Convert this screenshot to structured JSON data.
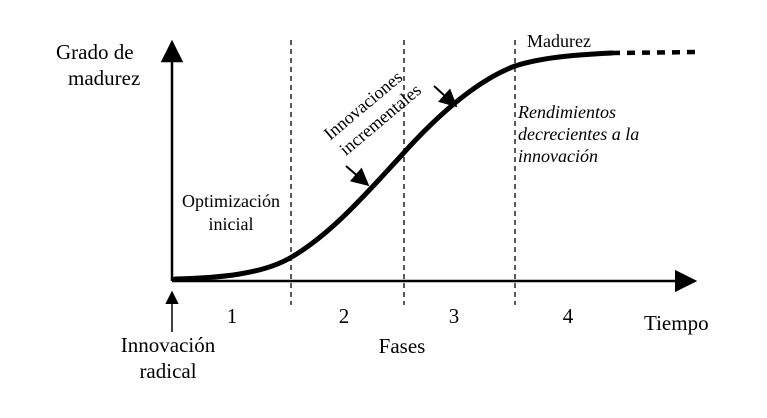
{
  "y_axis_label": [
    "Grado de",
    "madurez"
  ],
  "x_axis_label": "Tiempo",
  "phases_label": "Fases",
  "phase_numbers": [
    "1",
    "2",
    "3",
    "4"
  ],
  "origin_label": [
    "Innovación",
    "radical"
  ],
  "annotations": {
    "optimization": [
      "Optimización",
      "inicial"
    ],
    "incremental": [
      "Innovaciones",
      "incrementales"
    ],
    "maturity": "Madurez",
    "diminishing": [
      "Rendimientos",
      "decrecientes a la",
      "innovación"
    ]
  }
}
